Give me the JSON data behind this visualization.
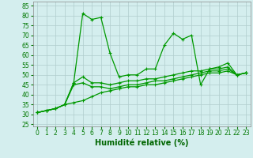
{
  "x": [
    0,
    1,
    2,
    3,
    4,
    5,
    6,
    7,
    8,
    9,
    10,
    11,
    12,
    13,
    14,
    15,
    16,
    17,
    18,
    19,
    20,
    21,
    22,
    23
  ],
  "series": [
    [
      31,
      32,
      33,
      35,
      46,
      81,
      78,
      79,
      61,
      49,
      50,
      50,
      53,
      53,
      65,
      71,
      68,
      70,
      45,
      53,
      54,
      56,
      50,
      51
    ],
    [
      31,
      32,
      33,
      35,
      46,
      49,
      46,
      46,
      45,
      46,
      47,
      47,
      48,
      48,
      49,
      50,
      51,
      52,
      52,
      53,
      53,
      54,
      50,
      51
    ],
    [
      31,
      32,
      33,
      35,
      45,
      46,
      44,
      44,
      43,
      44,
      45,
      45,
      46,
      47,
      47,
      48,
      49,
      50,
      51,
      52,
      52,
      53,
      50,
      51
    ],
    [
      31,
      32,
      33,
      35,
      36,
      37,
      39,
      41,
      42,
      43,
      44,
      44,
      45,
      45,
      46,
      47,
      48,
      49,
      50,
      51,
      51,
      52,
      50,
      51
    ]
  ],
  "line_color": "#009900",
  "marker": "+",
  "markersize": 3,
  "linewidth": 0.9,
  "markeredgewidth": 0.8,
  "xlabel": "Humidité relative (%)",
  "xlabel_color": "#006600",
  "xlabel_fontsize": 7,
  "ylabel_ticks": [
    25,
    30,
    35,
    40,
    45,
    50,
    55,
    60,
    65,
    70,
    75,
    80,
    85
  ],
  "ylim": [
    24,
    87
  ],
  "xlim": [
    -0.5,
    23.5
  ],
  "bg_color": "#d4eeee",
  "grid_color": "#b0cccc",
  "tick_color": "#007700",
  "tick_fontsize": 5.5,
  "spine_color": "#888888"
}
